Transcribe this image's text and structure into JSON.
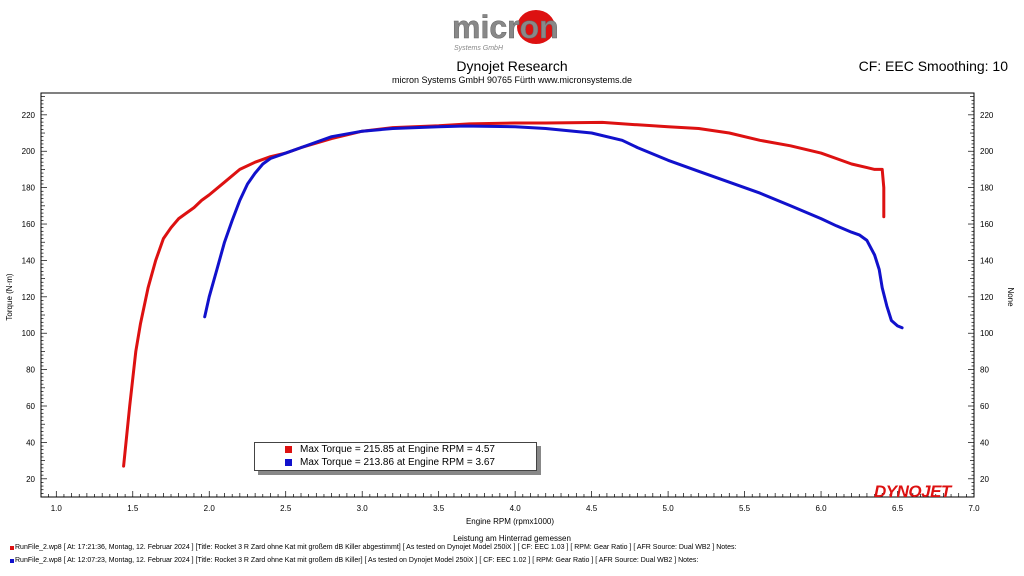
{
  "header": {
    "logo_main": "micron",
    "logo_sub": "Systems GmbH",
    "title": "Dynojet Research",
    "subtitle": "micron Systems GmbH  90765 Fürth www.micronsystems.de",
    "cf_text": "CF: EEC Smoothing: 10"
  },
  "colors": {
    "run1": "#dd1111",
    "run2": "#1111cc",
    "background": "#ffffff"
  },
  "chart_data": {
    "type": "line",
    "title": "Dynojet Research",
    "xlabel": "Engine RPM (rpmx1000)",
    "ylabel": "Torque (N·m)",
    "ylabel_right": "None",
    "xlim": [
      0.9,
      7.0
    ],
    "ylim": [
      10,
      232
    ],
    "xticks": [
      "1.0",
      "1.5",
      "2.0",
      "2.5",
      "3.0",
      "3.5",
      "4.0",
      "4.5",
      "5.0",
      "5.5",
      "6.0",
      "6.5",
      "7.0"
    ],
    "yticks": [
      "20",
      "40",
      "60",
      "80",
      "100",
      "120",
      "140",
      "160",
      "180",
      "200",
      "220"
    ],
    "annotation": "Leistung am Hinterrad gemessen",
    "grid": false,
    "legend_placement": "bottom-center",
    "series": [
      {
        "name": "Max Torque = 215.85 at Engine RPM = 4.57",
        "color": "#dd1111",
        "points": [
          [
            1.44,
            27
          ],
          [
            1.48,
            60
          ],
          [
            1.52,
            90
          ],
          [
            1.55,
            105
          ],
          [
            1.6,
            125
          ],
          [
            1.65,
            140
          ],
          [
            1.7,
            152
          ],
          [
            1.75,
            158
          ],
          [
            1.8,
            163
          ],
          [
            1.85,
            166
          ],
          [
            1.9,
            169
          ],
          [
            1.95,
            173
          ],
          [
            2.0,
            176
          ],
          [
            2.1,
            183
          ],
          [
            2.2,
            190
          ],
          [
            2.3,
            194
          ],
          [
            2.4,
            197
          ],
          [
            2.5,
            199
          ],
          [
            2.6,
            202
          ],
          [
            2.8,
            207
          ],
          [
            3.0,
            211
          ],
          [
            3.2,
            213
          ],
          [
            3.5,
            214
          ],
          [
            3.7,
            215
          ],
          [
            4.0,
            215.5
          ],
          [
            4.2,
            215.5
          ],
          [
            4.57,
            215.85
          ],
          [
            4.8,
            214.5
          ],
          [
            5.0,
            213.5
          ],
          [
            5.2,
            212.5
          ],
          [
            5.4,
            210
          ],
          [
            5.6,
            206
          ],
          [
            5.8,
            203
          ],
          [
            6.0,
            199
          ],
          [
            6.1,
            196
          ],
          [
            6.2,
            193
          ],
          [
            6.3,
            191
          ],
          [
            6.35,
            190
          ],
          [
            6.4,
            190
          ],
          [
            6.41,
            180
          ],
          [
            6.41,
            164
          ]
        ]
      },
      {
        "name": "Max Torque = 213.86 at Engine RPM = 3.67",
        "color": "#1111cc",
        "points": [
          [
            1.97,
            109
          ],
          [
            2.0,
            120
          ],
          [
            2.05,
            135
          ],
          [
            2.1,
            150
          ],
          [
            2.15,
            162
          ],
          [
            2.2,
            173
          ],
          [
            2.25,
            182
          ],
          [
            2.3,
            188
          ],
          [
            2.35,
            193
          ],
          [
            2.4,
            196
          ],
          [
            2.5,
            199
          ],
          [
            2.6,
            202
          ],
          [
            2.8,
            208
          ],
          [
            3.0,
            211
          ],
          [
            3.2,
            212.5
          ],
          [
            3.5,
            213.5
          ],
          [
            3.67,
            213.86
          ],
          [
            4.0,
            213.5
          ],
          [
            4.2,
            212.5
          ],
          [
            4.5,
            210
          ],
          [
            4.7,
            206
          ],
          [
            4.8,
            202
          ],
          [
            5.0,
            195
          ],
          [
            5.2,
            189
          ],
          [
            5.4,
            183
          ],
          [
            5.6,
            177
          ],
          [
            5.8,
            170
          ],
          [
            6.0,
            163
          ],
          [
            6.1,
            159
          ],
          [
            6.2,
            155.5
          ],
          [
            6.25,
            154
          ],
          [
            6.3,
            151
          ],
          [
            6.35,
            143
          ],
          [
            6.38,
            135
          ],
          [
            6.4,
            125
          ],
          [
            6.43,
            115
          ],
          [
            6.46,
            107
          ],
          [
            6.5,
            104
          ],
          [
            6.53,
            103
          ]
        ]
      }
    ]
  },
  "legend": [
    {
      "text": "Max Torque = 215.85 at Engine RPM = 4.57",
      "color": "#dd1111"
    },
    {
      "text": "Max Torque = 213.86 at Engine RPM = 3.67",
      "color": "#1111cc"
    }
  ],
  "footnotes": [
    {
      "color": "#dd1111",
      "text": "RunFile_2.wp8 [ At: 17:21:36, Montag, 12. Februar 2024 ] [Title: Rocket 3 R Zard ohne Kat mit großem dB Killer abgestimmt]  [ As tested on Dynojet Model 250iX ] [ CF: EEC 1.03 ] [ RPM: Gear Ratio ] [ AFR Source: Dual WB2 ] Notes:"
    },
    {
      "color": "#1111cc",
      "text": "RunFile_2.wp8 [ At: 12:07:23, Montag, 12. Februar 2024 ] [Title: Rocket 3 R Zard ohne Kat mit großem dB Killer]  [ As tested on Dynojet Model 250iX ] [ CF: EEC 1.02 ] [ RPM: Gear Ratio ] [ AFR Source: Dual WB2 ] Notes:"
    }
  ],
  "brand_logo": "DYNOJET"
}
